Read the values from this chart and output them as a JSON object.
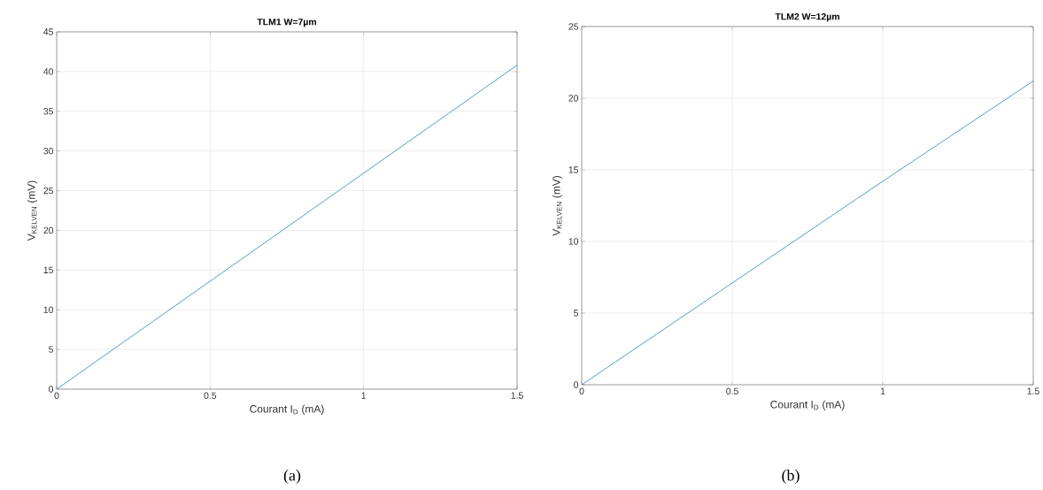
{
  "chart_data": [
    {
      "type": "line",
      "title": "TLM1 W=7µm",
      "xlabel": "Courant I$_{D}$ (mA)",
      "ylabel": "V$_{KELVEN}$ (mV)",
      "annotations": [
        "(a)"
      ],
      "x": [
        0,
        0.5,
        1,
        1.5
      ],
      "series": [
        {
          "color": "#0072bd",
          "values": [
            0,
            13.6,
            27.2,
            40.8
          ]
        }
      ],
      "xlim": [
        0,
        1.5
      ],
      "xticks": [
        0,
        0.5,
        1,
        1.5
      ],
      "ylim": [
        0,
        45
      ],
      "yticks": [
        0,
        5,
        10,
        15,
        20,
        25,
        30,
        35,
        40,
        45
      ],
      "grid": true
    },
    {
      "type": "line",
      "title": "TLM2 W=12µm",
      "xlabel": "Courant I$_{D}$ (mA)",
      "ylabel": "V$_{KELVEN}$ (mV)",
      "annotations": [
        "(b)"
      ],
      "x": [
        0,
        0.5,
        1,
        1.5
      ],
      "series": [
        {
          "color": "#0072bd",
          "values": [
            0,
            7.1,
            14.2,
            21.2
          ]
        }
      ],
      "xlim": [
        0,
        1.5
      ],
      "xticks": [
        0,
        0.5,
        1,
        1.5
      ],
      "ylim": [
        0,
        25
      ],
      "yticks": [
        0,
        5,
        10,
        15,
        20,
        25
      ],
      "grid": true
    }
  ]
}
